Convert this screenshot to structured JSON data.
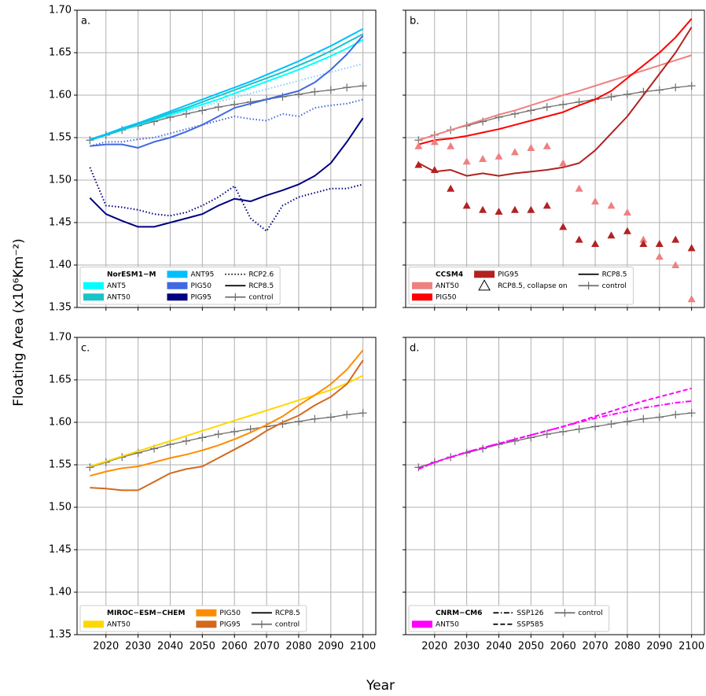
{
  "ylabel": "Floating Area (x10⁶Km⁻²)",
  "xlabel": "Year",
  "chart_data": [
    {
      "type": "line",
      "panel_label": "a.",
      "xlim": [
        2011,
        2104
      ],
      "ylim": [
        1.35,
        1.7
      ],
      "xticks": [
        2020,
        2030,
        2040,
        2050,
        2060,
        2070,
        2080,
        2090,
        2100
      ],
      "yticks": [
        1.35,
        {
          "value": 1.4,
          "label": "1.40"
        },
        1.45,
        {
          "value": 1.5,
          "label": "1.50"
        },
        1.55,
        {
          "value": 1.6,
          "label": "1.60"
        },
        1.65,
        {
          "value": 1.7,
          "label": "1.70"
        }
      ],
      "grid": true,
      "show_xtick_labels": false,
      "show_ytick_labels": true,
      "x": [
        2015,
        2020,
        2025,
        2030,
        2035,
        2040,
        2045,
        2050,
        2055,
        2060,
        2065,
        2070,
        2075,
        2080,
        2085,
        2090,
        2095,
        2100
      ],
      "legend": {
        "title": "NorESM1−M",
        "items": [
          {
            "label": "ANT5",
            "kind": "patch",
            "color": "#00ffff"
          },
          {
            "label": "ANT50",
            "kind": "patch",
            "color": "#1ac3c8"
          },
          {
            "label": "ANT95",
            "kind": "patch",
            "color": "#00bfff"
          },
          {
            "label": "PIG50",
            "kind": "patch",
            "color": "#4169e1"
          },
          {
            "label": "PIG95",
            "kind": "patch",
            "color": "#000080"
          },
          {
            "label": "RCP2.6",
            "kind": "line",
            "color": "#000000",
            "linestyle": "dotted"
          },
          {
            "label": "RCP8.5",
            "kind": "line",
            "color": "#000000",
            "linestyle": "solid"
          },
          {
            "label": "control",
            "kind": "line",
            "color": "#6e6e6e",
            "linestyle": "solid",
            "marker": "plus"
          }
        ]
      },
      "series": [
        {
          "color": "#87cefa",
          "linestyle": "dotted",
          "values": [
            1.547,
            1.553,
            1.559,
            1.565,
            1.57,
            1.576,
            1.581,
            1.586,
            1.592,
            1.597,
            1.602,
            1.607,
            1.612,
            1.617,
            1.622,
            1.627,
            1.632,
            1.637
          ]
        },
        {
          "color": "#4169e1",
          "linestyle": "dotted",
          "values": [
            1.54,
            1.545,
            1.545,
            1.548,
            1.55,
            1.555,
            1.56,
            1.565,
            1.57,
            1.575,
            1.572,
            1.57,
            1.578,
            1.575,
            1.585,
            1.588,
            1.59,
            1.595
          ]
        },
        {
          "color": "#000080",
          "linestyle": "dotted",
          "values": [
            1.515,
            1.47,
            1.468,
            1.465,
            1.46,
            1.458,
            1.462,
            1.47,
            1.48,
            1.493,
            1.455,
            1.44,
            1.47,
            1.48,
            1.485,
            1.49,
            1.49,
            1.495
          ]
        },
        {
          "color": "#6e6e6e",
          "linestyle": "solid",
          "marker": "plus",
          "values": [
            1.547,
            1.553,
            1.559,
            1.564,
            1.569,
            1.574,
            1.578,
            1.582,
            1.586,
            1.589,
            1.592,
            1.595,
            1.598,
            1.601,
            1.604,
            1.606,
            1.609,
            1.611
          ]
        },
        {
          "color": "#00ffff",
          "linestyle": "solid",
          "values": [
            1.547,
            1.553,
            1.559,
            1.565,
            1.571,
            1.577,
            1.583,
            1.589,
            1.595,
            1.602,
            1.609,
            1.616,
            1.623,
            1.63,
            1.638,
            1.646,
            1.655,
            1.665
          ]
        },
        {
          "color": "#1ac3c8",
          "linestyle": "solid",
          "values": [
            1.547,
            1.553,
            1.559,
            1.566,
            1.572,
            1.579,
            1.585,
            1.592,
            1.599,
            1.606,
            1.613,
            1.62,
            1.627,
            1.635,
            1.643,
            1.652,
            1.662,
            1.672
          ]
        },
        {
          "color": "#00bfff",
          "linestyle": "solid",
          "values": [
            1.548,
            1.554,
            1.561,
            1.567,
            1.574,
            1.581,
            1.588,
            1.595,
            1.602,
            1.609,
            1.616,
            1.624,
            1.632,
            1.64,
            1.649,
            1.658,
            1.668,
            1.678
          ]
        },
        {
          "color": "#4169e1",
          "linestyle": "solid",
          "values": [
            1.54,
            1.542,
            1.542,
            1.538,
            1.545,
            1.55,
            1.557,
            1.565,
            1.575,
            1.585,
            1.59,
            1.595,
            1.6,
            1.605,
            1.615,
            1.63,
            1.648,
            1.67
          ]
        },
        {
          "color": "#000080",
          "linestyle": "solid",
          "values": [
            1.479,
            1.46,
            1.452,
            1.445,
            1.445,
            1.45,
            1.455,
            1.46,
            1.47,
            1.478,
            1.475,
            1.482,
            1.488,
            1.495,
            1.505,
            1.52,
            1.545,
            1.573
          ]
        }
      ]
    },
    {
      "type": "line",
      "panel_label": "b.",
      "xlim": [
        2011,
        2104
      ],
      "ylim": [
        1.35,
        1.7
      ],
      "xticks": [
        2020,
        2030,
        2040,
        2050,
        2060,
        2070,
        2080,
        2090,
        2100
      ],
      "yticks": [
        1.35,
        1.4,
        1.45,
        1.5,
        1.55,
        1.6,
        1.65,
        1.7
      ],
      "grid": true,
      "show_xtick_labels": false,
      "show_ytick_labels": false,
      "x": [
        2015,
        2020,
        2025,
        2030,
        2035,
        2040,
        2045,
        2050,
        2055,
        2060,
        2065,
        2070,
        2075,
        2080,
        2085,
        2090,
        2095,
        2100
      ],
      "legend": {
        "title": "CCSM4",
        "items": [
          {
            "label": "ANT50",
            "kind": "patch",
            "color": "#f08080"
          },
          {
            "label": "PIG50",
            "kind": "patch",
            "color": "#ff0000"
          },
          {
            "label": "PIG95",
            "kind": "patch",
            "color": "#b22222"
          },
          {
            "label": "RCP8.5, collapse on",
            "kind": "marker",
            "color": "#000000",
            "marker": "triangle"
          },
          {
            "label": "RCP8.5",
            "kind": "line",
            "color": "#000000",
            "linestyle": "solid"
          },
          {
            "label": "control",
            "kind": "line",
            "color": "#6e6e6e",
            "linestyle": "solid",
            "marker": "plus"
          }
        ]
      },
      "series": [
        {
          "color": "#6e6e6e",
          "linestyle": "solid",
          "marker": "plus",
          "values": [
            1.547,
            1.553,
            1.559,
            1.564,
            1.569,
            1.574,
            1.578,
            1.582,
            1.586,
            1.589,
            1.592,
            1.595,
            1.598,
            1.601,
            1.604,
            1.606,
            1.609,
            1.611
          ]
        },
        {
          "color": "#f08080",
          "linestyle": "solid",
          "values": [
            1.547,
            1.553,
            1.559,
            1.565,
            1.571,
            1.577,
            1.582,
            1.588,
            1.594,
            1.6,
            1.605,
            1.611,
            1.617,
            1.623,
            1.629,
            1.635,
            1.641,
            1.647
          ]
        },
        {
          "color": "#ff0000",
          "linestyle": "solid",
          "values": [
            1.542,
            1.547,
            1.549,
            1.552,
            1.556,
            1.56,
            1.565,
            1.57,
            1.575,
            1.58,
            1.588,
            1.595,
            1.605,
            1.62,
            1.635,
            1.65,
            1.668,
            1.69
          ]
        },
        {
          "color": "#b22222",
          "linestyle": "solid",
          "values": [
            1.52,
            1.51,
            1.512,
            1.505,
            1.508,
            1.505,
            1.508,
            1.51,
            1.512,
            1.515,
            1.52,
            1.535,
            1.555,
            1.575,
            1.6,
            1.625,
            1.65,
            1.68
          ]
        },
        {
          "color": "#f08080",
          "linestyle": "none",
          "marker": "triangle",
          "values": [
            1.54,
            1.545,
            1.54,
            1.522,
            1.525,
            1.528,
            1.533,
            1.538,
            1.54,
            1.52,
            1.49,
            1.475,
            1.47,
            1.462,
            1.43,
            1.41,
            1.4,
            1.36
          ]
        },
        {
          "color": "#b22222",
          "linestyle": "none",
          "marker": "triangle",
          "values": [
            1.518,
            1.512,
            1.49,
            1.47,
            1.465,
            1.463,
            1.465,
            1.465,
            1.47,
            1.445,
            1.43,
            1.425,
            1.435,
            1.44,
            1.425,
            1.425,
            1.43,
            1.42
          ]
        }
      ]
    },
    {
      "type": "line",
      "panel_label": "c.",
      "xlim": [
        2011,
        2104
      ],
      "ylim": [
        1.35,
        1.7
      ],
      "xticks": [
        2020,
        2030,
        2040,
        2050,
        2060,
        2070,
        2080,
        2090,
        2100
      ],
      "yticks": [
        1.35,
        {
          "value": 1.4,
          "label": "1.40"
        },
        1.45,
        {
          "value": 1.5,
          "label": "1.50"
        },
        1.55,
        {
          "value": 1.6,
          "label": "1.60"
        },
        1.65,
        {
          "value": 1.7,
          "label": "1.70"
        }
      ],
      "grid": true,
      "show_xtick_labels": true,
      "show_ytick_labels": true,
      "x": [
        2015,
        2020,
        2025,
        2030,
        2035,
        2040,
        2045,
        2050,
        2055,
        2060,
        2065,
        2070,
        2075,
        2080,
        2085,
        2090,
        2095,
        2100
      ],
      "legend": {
        "title": "MIROC−ESM−CHEM",
        "items": [
          {
            "label": "ANT50",
            "kind": "patch",
            "color": "#ffd700"
          },
          {
            "label": "PIG50",
            "kind": "patch",
            "color": "#ff8c00"
          },
          {
            "label": "PIG95",
            "kind": "patch",
            "color": "#d2691e"
          },
          {
            "label": "RCP8.5",
            "kind": "line",
            "color": "#000000",
            "linestyle": "solid"
          },
          {
            "label": "control",
            "kind": "line",
            "color": "#6e6e6e",
            "linestyle": "solid",
            "marker": "plus"
          }
        ]
      },
      "series": [
        {
          "color": "#6e6e6e",
          "linestyle": "solid",
          "marker": "plus",
          "values": [
            1.547,
            1.553,
            1.559,
            1.564,
            1.569,
            1.574,
            1.578,
            1.582,
            1.586,
            1.589,
            1.592,
            1.595,
            1.598,
            1.601,
            1.604,
            1.606,
            1.609,
            1.611
          ]
        },
        {
          "color": "#ffd700",
          "linestyle": "solid",
          "values": [
            1.548,
            1.554,
            1.56,
            1.566,
            1.572,
            1.578,
            1.584,
            1.59,
            1.596,
            1.602,
            1.608,
            1.614,
            1.62,
            1.626,
            1.632,
            1.638,
            1.646,
            1.655
          ]
        },
        {
          "color": "#ff8c00",
          "linestyle": "solid",
          "values": [
            1.537,
            1.542,
            1.546,
            1.548,
            1.553,
            1.558,
            1.562,
            1.567,
            1.573,
            1.58,
            1.588,
            1.597,
            1.607,
            1.62,
            1.632,
            1.645,
            1.662,
            1.685
          ]
        },
        {
          "color": "#d2691e",
          "linestyle": "solid",
          "values": [
            1.523,
            1.522,
            1.52,
            1.52,
            1.53,
            1.54,
            1.545,
            1.548,
            1.558,
            1.568,
            1.578,
            1.59,
            1.6,
            1.608,
            1.62,
            1.63,
            1.645,
            1.673
          ]
        }
      ]
    },
    {
      "type": "line",
      "panel_label": "d.",
      "xlim": [
        2011,
        2104
      ],
      "ylim": [
        1.35,
        1.7
      ],
      "xticks": [
        2020,
        2030,
        2040,
        2050,
        2060,
        2070,
        2080,
        2090,
        2100
      ],
      "yticks": [
        1.35,
        1.4,
        1.45,
        1.5,
        1.55,
        1.6,
        1.65,
        1.7
      ],
      "grid": true,
      "show_xtick_labels": true,
      "show_ytick_labels": false,
      "x": [
        2015,
        2020,
        2025,
        2030,
        2035,
        2040,
        2045,
        2050,
        2055,
        2060,
        2065,
        2070,
        2075,
        2080,
        2085,
        2090,
        2095,
        2100
      ],
      "legend": {
        "title": "CNRM−CM6",
        "items": [
          {
            "label": "ANT50",
            "kind": "patch",
            "color": "#ff00ff"
          },
          {
            "label": "SSP126",
            "kind": "line",
            "color": "#000000",
            "linestyle": "dashdot"
          },
          {
            "label": "SSP585",
            "kind": "line",
            "color": "#000000",
            "linestyle": "dashed"
          },
          {
            "label": "control",
            "kind": "line",
            "color": "#6e6e6e",
            "linestyle": "solid",
            "marker": "plus"
          }
        ]
      },
      "series": [
        {
          "color": "#6e6e6e",
          "linestyle": "solid",
          "marker": "plus",
          "values": [
            1.547,
            1.553,
            1.559,
            1.564,
            1.569,
            1.574,
            1.578,
            1.582,
            1.586,
            1.589,
            1.592,
            1.595,
            1.598,
            1.601,
            1.604,
            1.606,
            1.609,
            1.611
          ]
        },
        {
          "color": "#ff00ff",
          "linestyle": "dashdot",
          "values": [
            1.545,
            1.553,
            1.559,
            1.565,
            1.57,
            1.575,
            1.58,
            1.585,
            1.59,
            1.595,
            1.6,
            1.605,
            1.609,
            1.613,
            1.617,
            1.62,
            1.623,
            1.625
          ]
        },
        {
          "color": "#ff00ff",
          "linestyle": "dashed",
          "values": [
            1.545,
            1.553,
            1.559,
            1.565,
            1.57,
            1.575,
            1.58,
            1.585,
            1.59,
            1.595,
            1.601,
            1.607,
            1.613,
            1.619,
            1.625,
            1.63,
            1.635,
            1.64
          ]
        }
      ]
    }
  ]
}
